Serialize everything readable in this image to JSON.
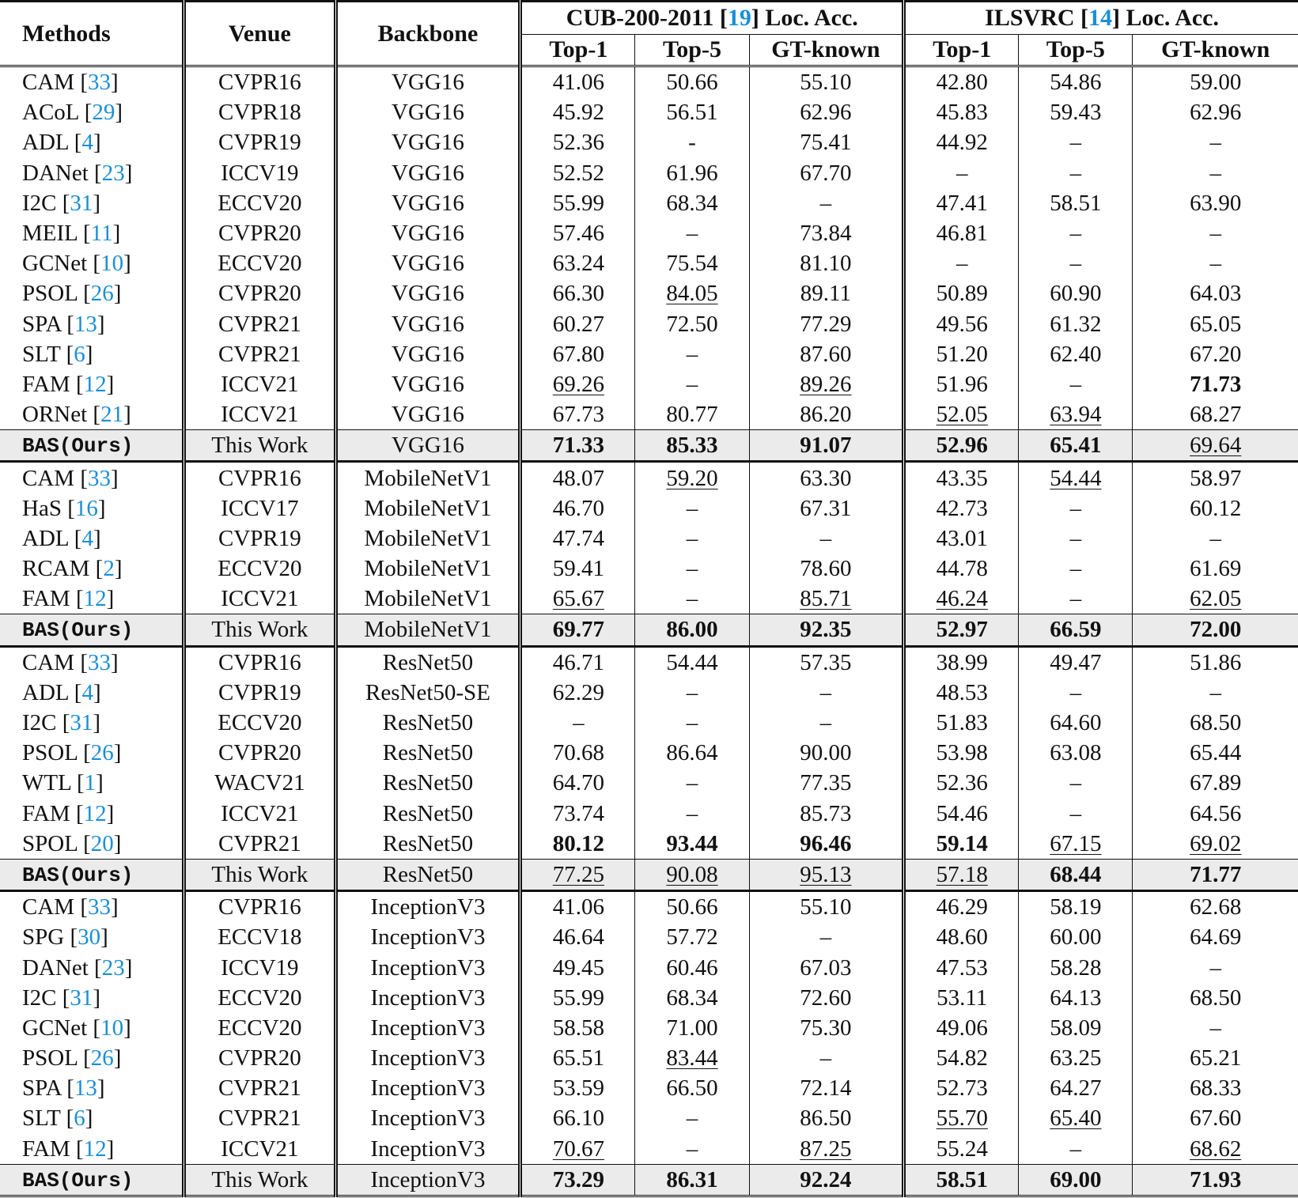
{
  "header": {
    "methods": "Methods",
    "venue": "Venue",
    "backbone": "Backbone",
    "cub_prefix": "CUB-200-2011 [",
    "cub_ref": "19",
    "cub_suffix": "] Loc. Acc.",
    "ilsvrc_prefix": "ILSVRC [",
    "ilsvrc_ref": "14",
    "ilsvrc_suffix": "] Loc. Acc.",
    "sub": [
      "Top-1",
      "Top-5",
      "GT-known",
      "Top-1",
      "Top-5",
      "GT-known"
    ]
  },
  "groups": [
    {
      "rows": [
        {
          "name": "CAM",
          "ref": "33",
          "venue": "CVPR16",
          "backbone": "VGG16",
          "values": [
            "41.06",
            "50.66",
            "55.10",
            "42.80",
            "54.86",
            "59.00"
          ]
        },
        {
          "name": "ACoL",
          "ref": "29",
          "venue": "CVPR18",
          "backbone": "VGG16",
          "values": [
            "45.92",
            "56.51",
            "62.96",
            "45.83",
            "59.43",
            "62.96"
          ]
        },
        {
          "name": "ADL",
          "ref": "4",
          "venue": "CVPR19",
          "backbone": "VGG16",
          "values": [
            "52.36",
            "-",
            "75.41",
            "44.92",
            "–",
            "–"
          ]
        },
        {
          "name": "DANet",
          "ref": "23",
          "venue": "ICCV19",
          "backbone": "VGG16",
          "values": [
            "52.52",
            "61.96",
            "67.70",
            "–",
            "–",
            "–"
          ]
        },
        {
          "name": "I2C",
          "ref": "31",
          "venue": "ECCV20",
          "backbone": "VGG16",
          "values": [
            "55.99",
            "68.34",
            "–",
            "47.41",
            "58.51",
            "63.90"
          ]
        },
        {
          "name": "MEIL",
          "ref": "11",
          "venue": "CVPR20",
          "backbone": "VGG16",
          "values": [
            "57.46",
            "–",
            "73.84",
            "46.81",
            "–",
            "–"
          ]
        },
        {
          "name": "GCNet",
          "ref": "10",
          "venue": "ECCV20",
          "backbone": "VGG16",
          "values": [
            "63.24",
            "75.54",
            "81.10",
            "–",
            "–",
            "–"
          ]
        },
        {
          "name": "PSOL",
          "ref": "26",
          "venue": "CVPR20",
          "backbone": "VGG16",
          "values": [
            "66.30",
            "84.05",
            "89.11",
            "50.89",
            "60.90",
            "64.03"
          ],
          "u": [
            1
          ]
        },
        {
          "name": "SPA",
          "ref": "13",
          "venue": "CVPR21",
          "backbone": "VGG16",
          "values": [
            "60.27",
            "72.50",
            "77.29",
            "49.56",
            "61.32",
            "65.05"
          ]
        },
        {
          "name": "SLT",
          "ref": "6",
          "venue": "CVPR21",
          "backbone": "VGG16",
          "values": [
            "67.80",
            "–",
            "87.60",
            "51.20",
            "62.40",
            "67.20"
          ]
        },
        {
          "name": "FAM",
          "ref": "12",
          "venue": "ICCV21",
          "backbone": "VGG16",
          "values": [
            "69.26",
            "–",
            "89.26",
            "51.96",
            "–",
            "71.73"
          ],
          "u": [
            0,
            2
          ],
          "b": [
            5
          ]
        },
        {
          "name": "ORNet",
          "ref": "21",
          "venue": "ICCV21",
          "backbone": "VGG16",
          "values": [
            "67.73",
            "80.77",
            "86.20",
            "52.05",
            "63.94",
            "68.27"
          ],
          "u": [
            3,
            4
          ]
        }
      ],
      "ours": {
        "name": "BAS(Ours)",
        "venue": "This Work",
        "backbone": "VGG16",
        "values": [
          "71.33",
          "85.33",
          "91.07",
          "52.96",
          "65.41",
          "69.64"
        ],
        "b": [
          0,
          1,
          2,
          3,
          4
        ],
        "u": [
          5
        ]
      }
    },
    {
      "rows": [
        {
          "name": "CAM",
          "ref": "33",
          "venue": "CVPR16",
          "backbone": "MobileNetV1",
          "values": [
            "48.07",
            "59.20",
            "63.30",
            "43.35",
            "54.44",
            "58.97"
          ],
          "u": [
            1,
            4
          ]
        },
        {
          "name": "HaS",
          "ref": "16",
          "venue": "ICCV17",
          "backbone": "MobileNetV1",
          "values": [
            "46.70",
            "–",
            "67.31",
            "42.73",
            "–",
            "60.12"
          ]
        },
        {
          "name": "ADL",
          "ref": "4",
          "venue": "CVPR19",
          "backbone": "MobileNetV1",
          "values": [
            "47.74",
            "–",
            "–",
            "43.01",
            "–",
            "–"
          ]
        },
        {
          "name": "RCAM",
          "ref": "2",
          "venue": "ECCV20",
          "backbone": "MobileNetV1",
          "values": [
            "59.41",
            "–",
            "78.60",
            "44.78",
            "–",
            "61.69"
          ]
        },
        {
          "name": "FAM",
          "ref": "12",
          "venue": "ICCV21",
          "backbone": "MobileNetV1",
          "values": [
            "65.67",
            "–",
            "85.71",
            "46.24",
            "–",
            "62.05"
          ],
          "u": [
            0,
            2,
            3,
            5
          ]
        }
      ],
      "ours": {
        "name": "BAS(Ours)",
        "venue": "This Work",
        "backbone": "MobileNetV1",
        "values": [
          "69.77",
          "86.00",
          "92.35",
          "52.97",
          "66.59",
          "72.00"
        ],
        "b": [
          0,
          1,
          2,
          3,
          4,
          5
        ]
      }
    },
    {
      "rows": [
        {
          "name": "CAM",
          "ref": "33",
          "venue": "CVPR16",
          "backbone": "ResNet50",
          "values": [
            "46.71",
            "54.44",
            "57.35",
            "38.99",
            "49.47",
            "51.86"
          ]
        },
        {
          "name": "ADL",
          "ref": "4",
          "venue": "CVPR19",
          "backbone": "ResNet50-SE",
          "values": [
            "62.29",
            "–",
            "–",
            "48.53",
            "–",
            "–"
          ]
        },
        {
          "name": "I2C",
          "ref": "31",
          "venue": "ECCV20",
          "backbone": "ResNet50",
          "values": [
            "–",
            "–",
            "–",
            "51.83",
            "64.60",
            "68.50"
          ]
        },
        {
          "name": "PSOL",
          "ref": "26",
          "venue": "CVPR20",
          "backbone": "ResNet50",
          "values": [
            "70.68",
            "86.64",
            "90.00",
            "53.98",
            "63.08",
            "65.44"
          ]
        },
        {
          "name": "WTL",
          "ref": "1",
          "venue": "WACV21",
          "backbone": "ResNet50",
          "values": [
            "64.70",
            "–",
            "77.35",
            "52.36",
            "–",
            "67.89"
          ]
        },
        {
          "name": "FAM",
          "ref": "12",
          "venue": "ICCV21",
          "backbone": "ResNet50",
          "values": [
            "73.74",
            "–",
            "85.73",
            "54.46",
            "–",
            "64.56"
          ]
        },
        {
          "name": "SPOL",
          "ref": "20",
          "venue": "CVPR21",
          "backbone": "ResNet50",
          "values": [
            "80.12",
            "93.44",
            "96.46",
            "59.14",
            "67.15",
            "69.02"
          ],
          "b": [
            0,
            1,
            2,
            3
          ],
          "u": [
            4,
            5
          ]
        }
      ],
      "ours": {
        "name": "BAS(Ours)",
        "venue": "This Work",
        "backbone": "ResNet50",
        "values": [
          "77.25",
          "90.08",
          "95.13",
          "57.18",
          "68.44",
          "71.77"
        ],
        "u": [
          0,
          1,
          2,
          3
        ],
        "b": [
          4,
          5
        ]
      }
    },
    {
      "rows": [
        {
          "name": "CAM",
          "ref": "33",
          "venue": "CVPR16",
          "backbone": "InceptionV3",
          "values": [
            "41.06",
            "50.66",
            "55.10",
            "46.29",
            "58.19",
            "62.68"
          ]
        },
        {
          "name": "SPG",
          "ref": "30",
          "venue": "ECCV18",
          "backbone": "InceptionV3",
          "values": [
            "46.64",
            "57.72",
            "–",
            "48.60",
            "60.00",
            "64.69"
          ]
        },
        {
          "name": "DANet",
          "ref": "23",
          "venue": "ICCV19",
          "backbone": "InceptionV3",
          "values": [
            "49.45",
            "60.46",
            "67.03",
            "47.53",
            "58.28",
            "–"
          ]
        },
        {
          "name": "I2C",
          "ref": "31",
          "venue": "ECCV20",
          "backbone": "InceptionV3",
          "values": [
            "55.99",
            "68.34",
            "72.60",
            "53.11",
            "64.13",
            "68.50"
          ]
        },
        {
          "name": "GCNet",
          "ref": "10",
          "venue": "ECCV20",
          "backbone": "InceptionV3",
          "values": [
            "58.58",
            "71.00",
            "75.30",
            "49.06",
            "58.09",
            "–"
          ]
        },
        {
          "name": "PSOL",
          "ref": "26",
          "venue": "CVPR20",
          "backbone": "InceptionV3",
          "values": [
            "65.51",
            "83.44",
            "–",
            "54.82",
            "63.25",
            "65.21"
          ],
          "u": [
            1
          ]
        },
        {
          "name": "SPA",
          "ref": "13",
          "venue": "CVPR21",
          "backbone": "InceptionV3",
          "values": [
            "53.59",
            "66.50",
            "72.14",
            "52.73",
            "64.27",
            "68.33"
          ]
        },
        {
          "name": "SLT",
          "ref": "6",
          "venue": "CVPR21",
          "backbone": "InceptionV3",
          "values": [
            "66.10",
            "–",
            "86.50",
            "55.70",
            "65.40",
            "67.60"
          ],
          "u": [
            3,
            4
          ]
        },
        {
          "name": "FAM",
          "ref": "12",
          "venue": "ICCV21",
          "backbone": "InceptionV3",
          "values": [
            "70.67",
            "–",
            "87.25",
            "55.24",
            "–",
            "68.62"
          ],
          "u": [
            0,
            2,
            5
          ]
        }
      ],
      "ours": {
        "name": "BAS(Ours)",
        "venue": "This Work",
        "backbone": "InceptionV3",
        "values": [
          "73.29",
          "86.31",
          "92.24",
          "58.51",
          "69.00",
          "71.93"
        ],
        "b": [
          0,
          1,
          2,
          3,
          4,
          5
        ]
      }
    }
  ]
}
